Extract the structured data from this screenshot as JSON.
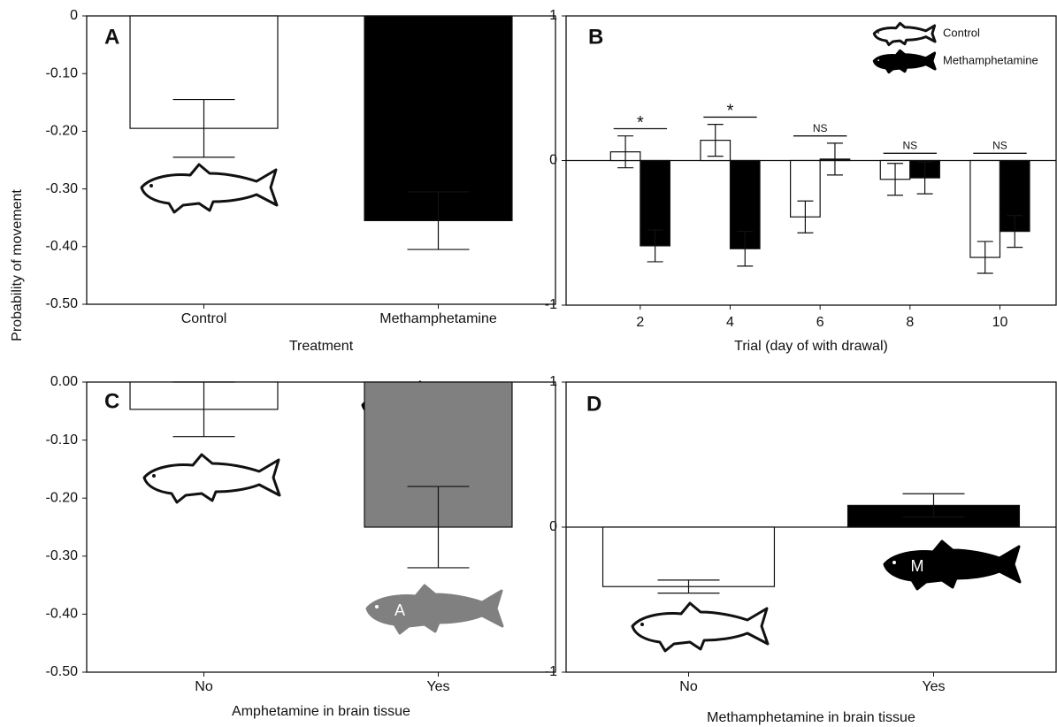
{
  "chart_data": [
    {
      "type": "bar",
      "panel": "A",
      "ylabel": "Probability of movement",
      "xlabel": "Treatment",
      "categories": [
        "Control",
        "Methamphetamine"
      ],
      "values": [
        -0.195,
        -0.355
      ],
      "errors": [
        0.05,
        0.05
      ],
      "colors": [
        "#ffffff",
        "#000000"
      ],
      "ylim": [
        -0.5,
        0
      ],
      "yticks": [
        0,
        {
          "value": -0.1,
          "label": "-0.10"
        },
        {
          "value": -0.2,
          "label": "-0.20"
        },
        {
          "value": -0.3,
          "label": "-0.30"
        },
        {
          "value": -0.4,
          "label": "-0.40"
        },
        {
          "value": -0.5,
          "label": "-0.50"
        }
      ]
    },
    {
      "type": "bar",
      "panel": "B",
      "xlabel": "Trial (day of with drawal)",
      "x": [
        2,
        4,
        6,
        8,
        10
      ],
      "xlim": [
        0.35,
        11.25
      ],
      "xticks": [
        2,
        4,
        6,
        8,
        10
      ],
      "series": [
        {
          "name": "Control",
          "color": "#ffffff",
          "values": [
            0.06,
            0.14,
            -0.39,
            -0.13,
            -0.67
          ],
          "errors": [
            0.11,
            0.11,
            0.11,
            0.11,
            0.11
          ]
        },
        {
          "name": "Methamphetamine",
          "color": "#000000",
          "values": [
            -0.59,
            -0.61,
            0.01,
            -0.12,
            -0.49
          ],
          "errors": [
            0.11,
            0.12,
            0.11,
            0.11,
            0.11
          ]
        }
      ],
      "annotations": [
        "*",
        "*",
        "NS",
        "NS",
        "NS"
      ],
      "ylim": [
        -1,
        1
      ],
      "yticks": [
        -1,
        0,
        1
      ],
      "legend": "upper right"
    },
    {
      "type": "bar",
      "panel": "C",
      "xlabel": "Amphetamine in brain tissue",
      "categories": [
        "No",
        "Yes"
      ],
      "values": [
        -0.047,
        -0.25
      ],
      "errors": [
        0.047,
        0.07
      ],
      "colors": [
        "#ffffff",
        "#808080"
      ],
      "icon_labels": [
        null,
        "A"
      ],
      "ylim": [
        -0.5,
        0
      ],
      "yticks": [
        {
          "value": 0,
          "label": "0.00"
        },
        {
          "value": -0.1,
          "label": "-0.10"
        },
        {
          "value": -0.2,
          "label": "-0.20"
        },
        {
          "value": -0.3,
          "label": "-0.30"
        },
        {
          "value": -0.4,
          "label": "-0.40"
        },
        {
          "value": -0.5,
          "label": "-0.50"
        }
      ]
    },
    {
      "type": "bar",
      "panel": "D",
      "xlabel": "Methamphetamine in brain tissue",
      "categories": [
        "No",
        "Yes"
      ],
      "values": [
        -0.41,
        0.15
      ],
      "errors": [
        0.045,
        0.08
      ],
      "colors": [
        "#ffffff",
        "#000000"
      ],
      "icon_labels": [
        null,
        "M"
      ],
      "ylim": [
        -1,
        1
      ],
      "yticks": [
        -1,
        0,
        1
      ]
    }
  ]
}
